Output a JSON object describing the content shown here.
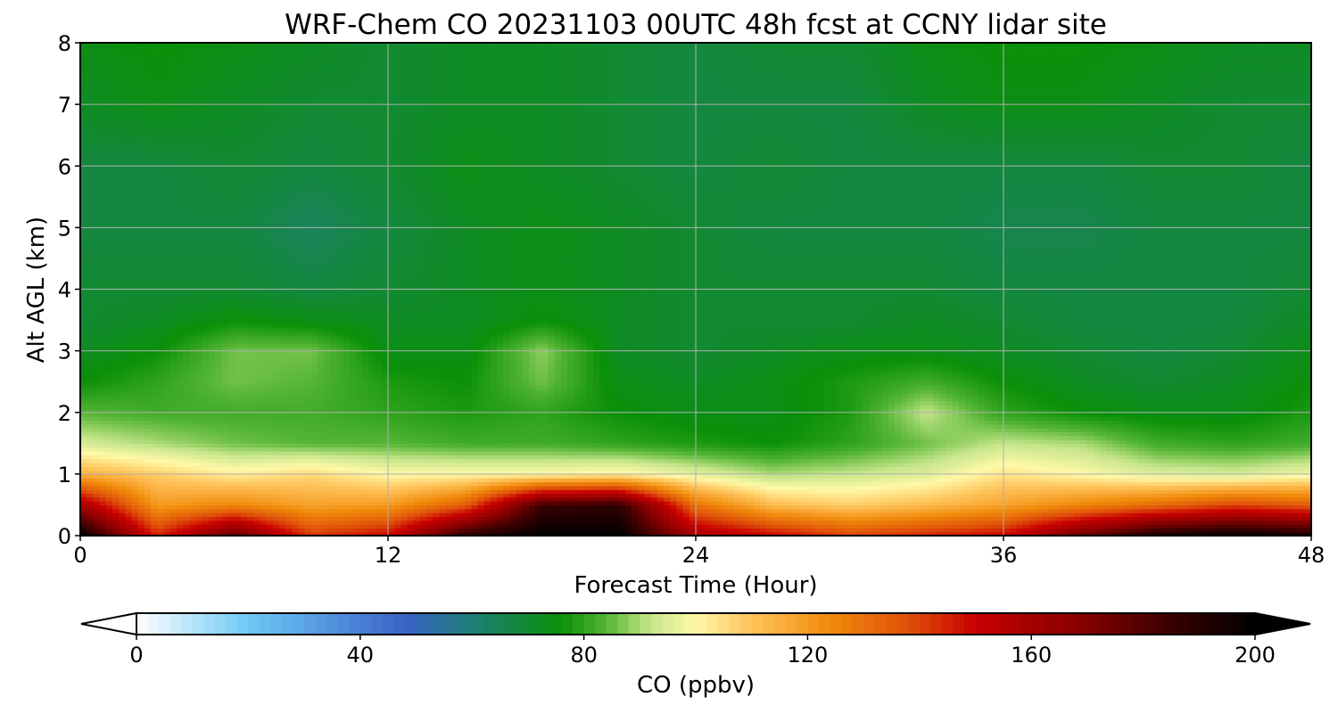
{
  "chart_data": {
    "type": "heatmap",
    "title": "WRF-Chem CO  20231103 00UTC 48h fcst at CCNY lidar site",
    "xlabel": "Forecast Time (Hour)",
    "ylabel": "Alt AGL (km)",
    "xlim": [
      0,
      48
    ],
    "ylim": [
      0,
      8
    ],
    "xticks": [
      0,
      12,
      24,
      36,
      48
    ],
    "yticks": [
      0,
      1,
      2,
      3,
      4,
      5,
      6,
      7,
      8
    ],
    "grid": true,
    "x": [
      0,
      3,
      6,
      9,
      12,
      15,
      18,
      21,
      24,
      27,
      30,
      33,
      36,
      39,
      42,
      45,
      48
    ],
    "y": [
      0,
      0.5,
      1,
      1.5,
      2,
      2.5,
      3,
      3.5,
      4,
      5,
      6,
      7,
      8
    ],
    "values": [
      [
        200,
        145,
        178,
        142,
        150,
        190,
        200,
        200,
        160,
        150,
        140,
        145,
        150,
        175,
        195,
        200,
        195
      ],
      [
        160,
        120,
        125,
        118,
        120,
        135,
        185,
        188,
        130,
        112,
        108,
        112,
        118,
        125,
        132,
        140,
        135
      ],
      [
        115,
        108,
        102,
        106,
        100,
        100,
        100,
        102,
        96,
        90,
        92,
        95,
        104,
        100,
        95,
        94,
        98
      ],
      [
        94,
        90,
        86,
        84,
        84,
        82,
        82,
        80,
        78,
        76,
        80,
        86,
        92,
        90,
        82,
        80,
        82
      ],
      [
        84,
        82,
        82,
        82,
        80,
        78,
        80,
        76,
        74,
        74,
        78,
        92,
        80,
        76,
        74,
        74,
        78
      ],
      [
        76,
        80,
        86,
        84,
        78,
        76,
        86,
        74,
        72,
        74,
        78,
        82,
        76,
        72,
        70,
        72,
        76
      ],
      [
        72,
        76,
        86,
        86,
        74,
        74,
        88,
        72,
        70,
        72,
        74,
        74,
        72,
        70,
        68,
        70,
        74
      ],
      [
        70,
        72,
        76,
        74,
        72,
        72,
        76,
        72,
        70,
        70,
        70,
        72,
        70,
        68,
        68,
        68,
        72
      ],
      [
        70,
        70,
        70,
        68,
        70,
        72,
        74,
        72,
        70,
        70,
        70,
        70,
        68,
        68,
        68,
        68,
        70
      ],
      [
        68,
        68,
        68,
        64,
        68,
        72,
        74,
        72,
        70,
        68,
        68,
        68,
        66,
        66,
        68,
        68,
        68
      ],
      [
        68,
        68,
        70,
        68,
        70,
        74,
        72,
        70,
        68,
        70,
        68,
        68,
        68,
        68,
        70,
        70,
        68
      ],
      [
        72,
        74,
        72,
        70,
        70,
        72,
        72,
        70,
        68,
        68,
        68,
        72,
        74,
        74,
        72,
        70,
        70
      ],
      [
        74,
        76,
        74,
        72,
        70,
        72,
        72,
        70,
        68,
        70,
        70,
        74,
        76,
        76,
        74,
        72,
        72
      ]
    ],
    "colorbar": {
      "label": "CO  (ppbv)",
      "min": 0,
      "max": 200,
      "ticks": [
        0,
        40,
        80,
        120,
        160,
        200
      ],
      "extend": "both",
      "colors": [
        {
          "value": 0,
          "color": "#ffffff"
        },
        {
          "value": 20,
          "color": "#6ec8f5"
        },
        {
          "value": 48,
          "color": "#3a63c8"
        },
        {
          "value": 60,
          "color": "#1e7f78"
        },
        {
          "value": 76,
          "color": "#0a9008"
        },
        {
          "value": 84,
          "color": "#55b535"
        },
        {
          "value": 92,
          "color": "#c8e68c"
        },
        {
          "value": 100,
          "color": "#fff9a8"
        },
        {
          "value": 110,
          "color": "#ffc35a"
        },
        {
          "value": 124,
          "color": "#f08a0a"
        },
        {
          "value": 138,
          "color": "#e0500a"
        },
        {
          "value": 150,
          "color": "#c80000"
        },
        {
          "value": 168,
          "color": "#8a0000"
        },
        {
          "value": 185,
          "color": "#3a0000"
        },
        {
          "value": 200,
          "color": "#000000"
        }
      ]
    }
  }
}
